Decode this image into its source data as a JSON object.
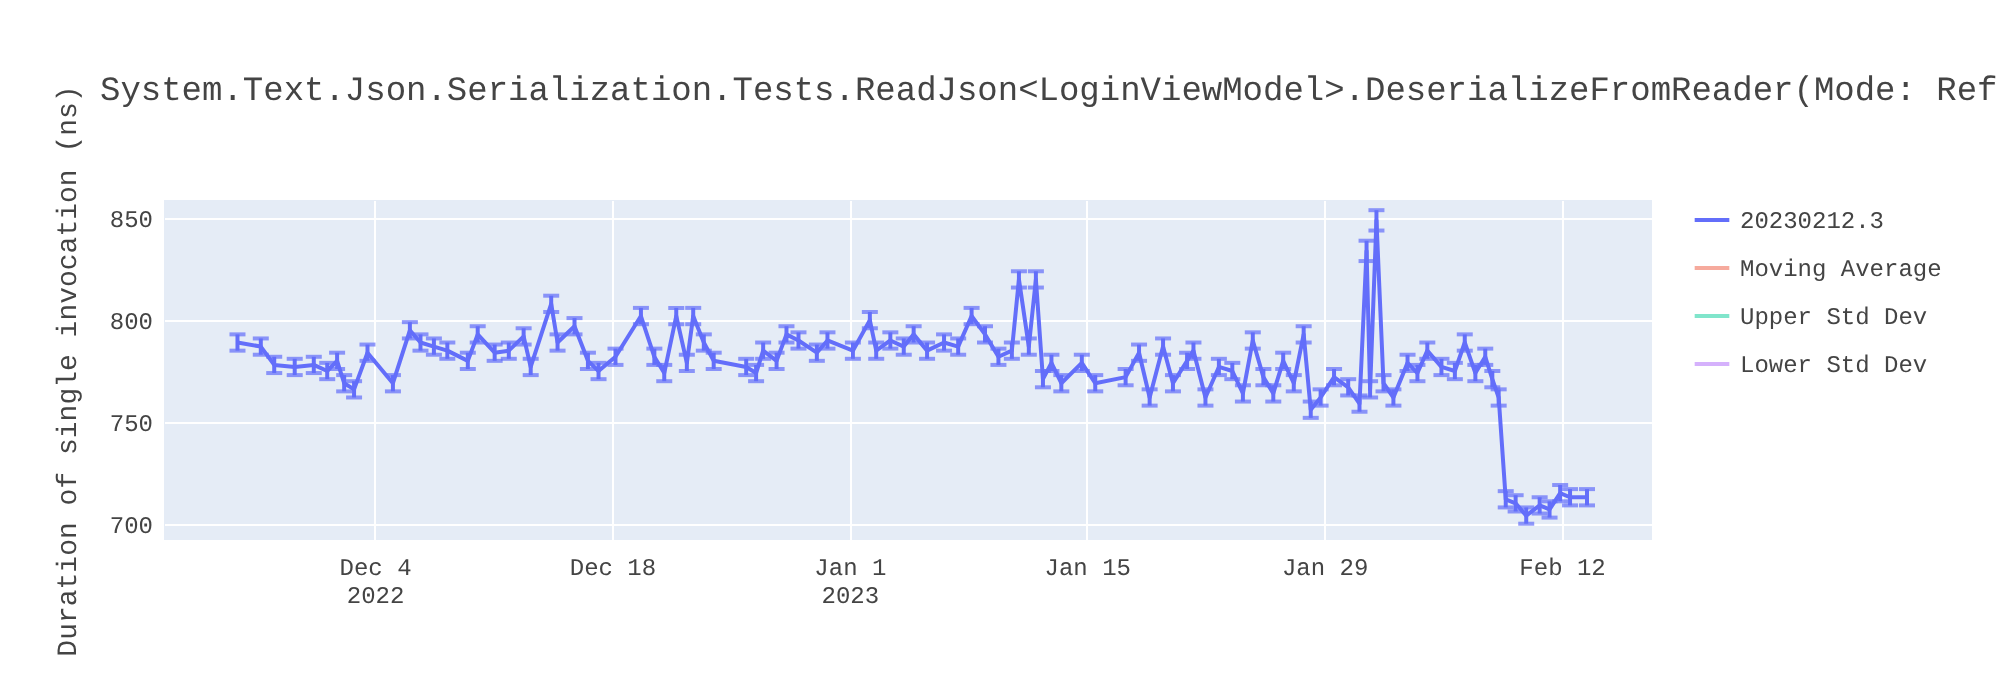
{
  "chart_data": {
    "type": "line",
    "title": "System.Text.Json.Serialization.Tests.ReadJson<LoginViewModel>.DeserializeFromReader(Mode: Ref",
    "ylabel": "Duration of single invocation (ns)",
    "x": [
      "2022-11-25T22:00",
      "2022-11-27T07:00",
      "2022-11-28T02:00",
      "2022-11-29T07:00",
      "2022-11-30T10:00",
      "2022-12-01T05:00",
      "2022-12-01T19:00",
      "2022-12-02T05:00",
      "2022-12-02T19:00",
      "2022-12-03T14:00",
      "2022-12-05T02:00",
      "2022-12-06T02:00",
      "2022-12-06T17:00",
      "2022-12-07T12:00",
      "2022-12-08T07:00",
      "2022-12-09T12:00",
      "2022-12-10T02:00",
      "2022-12-11T02:00",
      "2022-12-11T22:00",
      "2022-12-12T19:00",
      "2022-12-13T05:00",
      "2022-12-14T10:00",
      "2022-12-14T19:00",
      "2022-12-15T19:00",
      "2022-12-16T14:00",
      "2022-12-17T05:00",
      "2022-12-18T05:00",
      "2022-12-19T17:00",
      "2022-12-20T12:00",
      "2022-12-21T02:00",
      "2022-12-21T19:00",
      "2022-12-22T10:00",
      "2022-12-22T19:00",
      "2022-12-23T10:00",
      "2022-12-24T00:00",
      "2022-12-25T22:00",
      "2022-12-26T12:00",
      "2022-12-26T22:00",
      "2022-12-27T17:00",
      "2022-12-28T07:00",
      "2022-12-29T00:00",
      "2022-12-30T02:00",
      "2022-12-30T17:00",
      "2023-01-01T05:00",
      "2023-01-02T05:00",
      "2023-01-02T14:00",
      "2023-01-03T10:00",
      "2023-01-04T05:00",
      "2023-01-04T19:00",
      "2023-01-05T14:00",
      "2023-01-06T14:00",
      "2023-01-07T10:00",
      "2023-01-08T05:00",
      "2023-01-09T00:00",
      "2023-01-09T19:00",
      "2023-01-10T14:00",
      "2023-01-11T00:00",
      "2023-01-11T14:00",
      "2023-01-12T00:00",
      "2023-01-12T10:00",
      "2023-01-12T22:00",
      "2023-01-13T12:00",
      "2023-01-14T17:00",
      "2023-01-15T12:00",
      "2023-01-17T07:00",
      "2023-01-18T02:00",
      "2023-01-18T17:00",
      "2023-01-19T12:00",
      "2023-01-20T02:00",
      "2023-01-20T22:00",
      "2023-01-21T07:00",
      "2023-01-22T00:00",
      "2023-01-22T19:00",
      "2023-01-23T14:00",
      "2023-01-24T05:00",
      "2023-01-24T19:00",
      "2023-01-25T10:00",
      "2023-01-26T00:00",
      "2023-01-26T14:00",
      "2023-01-27T05:00",
      "2023-01-27T19:00",
      "2023-01-28T05:00",
      "2023-01-28T19:00",
      "2023-01-29T14:00",
      "2023-01-30T10:00",
      "2023-01-31T02:00",
      "2023-01-31T12:00",
      "2023-01-31T17:00",
      "2023-02-01T02:00",
      "2023-02-01T12:00",
      "2023-02-02T02:00",
      "2023-02-02T22:00",
      "2023-02-03T12:00",
      "2023-02-04T02:00",
      "2023-02-04T22:00",
      "2023-02-05T17:00",
      "2023-02-06T07:00",
      "2023-02-06T22:00",
      "2023-02-07T12:00",
      "2023-02-07T22:00",
      "2023-02-08T07:00",
      "2023-02-08T17:00",
      "2023-02-09T07:00",
      "2023-02-09T22:00",
      "2023-02-10T17:00",
      "2023-02-11T07:00",
      "2023-02-11T22:00",
      "2023-02-12T12:00",
      "2023-02-13T12:00"
    ],
    "series": [
      {
        "name": "20230212.3",
        "color": "#636efa",
        "values": [
          789,
          787,
          778,
          777,
          778,
          775,
          780,
          769,
          766,
          784,
          769,
          795,
          789,
          787,
          785,
          780,
          793,
          784,
          785,
          792,
          777,
          808,
          789,
          797,
          780,
          775,
          782,
          802,
          782,
          774,
          802,
          779,
          802,
          789,
          780,
          777,
          774,
          785,
          780,
          793,
          790,
          784,
          790,
          785,
          800,
          785,
          790,
          787,
          793,
          785,
          789,
          787,
          802,
          793,
          782,
          785,
          820,
          787,
          820,
          771,
          779,
          769,
          779,
          769,
          772,
          784,
          762,
          787,
          769,
          780,
          785,
          762,
          777,
          775,
          764,
          790,
          772,
          764,
          780,
          769,
          793,
          756,
          762,
          772,
          767,
          759,
          834,
          766,
          849,
          769,
          762,
          779,
          774,
          785,
          777,
          775,
          789,
          774,
          782,
          771,
          762,
          712,
          710,
          704,
          709,
          707,
          715,
          713,
          713
        ],
        "errors": [
          4,
          4,
          4,
          4,
          4,
          4,
          4,
          4,
          4,
          4,
          4,
          4,
          4,
          4,
          4,
          4,
          4,
          4,
          4,
          4,
          4,
          4,
          4,
          4,
          4,
          4,
          4,
          4,
          4,
          4,
          4,
          4,
          4,
          4,
          4,
          4,
          4,
          4,
          4,
          4,
          4,
          4,
          4,
          4,
          4,
          4,
          4,
          4,
          4,
          4,
          4,
          4,
          4,
          4,
          4,
          4,
          4,
          4,
          4,
          4,
          4,
          4,
          4,
          4,
          4,
          4,
          4,
          4,
          4,
          4,
          4,
          4,
          4,
          4,
          4,
          4,
          4,
          4,
          4,
          4,
          4,
          4,
          4,
          4,
          4,
          4,
          5,
          4,
          5,
          4,
          4,
          4,
          4,
          4,
          4,
          4,
          4,
          4,
          4,
          4,
          4,
          4,
          4,
          4,
          4,
          4,
          4,
          4,
          4
        ]
      },
      {
        "name": "Moving Average",
        "color": "#f6aa9d",
        "values": [
          null,
          null,
          null,
          null,
          null,
          null,
          null,
          null,
          null,
          null,
          null,
          null,
          null,
          null,
          null,
          null,
          null,
          null,
          null,
          null,
          null,
          null,
          null,
          null,
          null,
          null,
          null,
          null,
          null,
          null,
          null,
          null,
          null,
          null,
          null,
          null,
          null,
          null,
          null,
          null,
          null,
          null,
          null,
          null,
          null,
          null,
          null,
          null,
          null,
          null,
          null,
          null,
          null,
          null,
          null,
          null,
          null,
          null,
          null,
          null,
          null,
          null,
          null,
          null,
          null,
          null,
          null,
          null,
          null,
          null,
          null,
          null,
          null,
          null,
          null,
          null,
          null,
          null,
          null,
          null,
          null,
          null,
          null,
          null,
          null,
          null,
          null,
          null,
          null,
          null,
          null,
          null,
          null,
          null,
          null,
          null,
          null,
          null,
          null,
          null,
          null,
          null,
          null,
          null,
          null,
          null,
          null,
          null,
          null
        ]
      },
      {
        "name": "Upper Std Dev",
        "color": "#80e5cb",
        "values": [
          null,
          null,
          null,
          null,
          null,
          null,
          null,
          null,
          null,
          null,
          null,
          null,
          null,
          null,
          null,
          null,
          null,
          null,
          null,
          null,
          null,
          null,
          null,
          null,
          null,
          null,
          null,
          null,
          null,
          null,
          null,
          null,
          null,
          null,
          null,
          null,
          null,
          null,
          null,
          null,
          null,
          null,
          null,
          null,
          null,
          null,
          null,
          null,
          null,
          null,
          null,
          null,
          null,
          null,
          null,
          null,
          null,
          null,
          null,
          null,
          null,
          null,
          null,
          null,
          null,
          null,
          null,
          null,
          null,
          null,
          null,
          null,
          null,
          null,
          null,
          null,
          null,
          null,
          null,
          null,
          null,
          null,
          null,
          null,
          null,
          null,
          null,
          null,
          null,
          null,
          null,
          null,
          null,
          null,
          null,
          null,
          null,
          null,
          null,
          null,
          null,
          null,
          null,
          null,
          null,
          null,
          null,
          null,
          null
        ]
      },
      {
        "name": "Lower Std Dev",
        "color": "#d5b1fc",
        "values": [
          null,
          null,
          null,
          null,
          null,
          null,
          null,
          null,
          null,
          null,
          null,
          null,
          null,
          null,
          null,
          null,
          null,
          null,
          null,
          null,
          null,
          null,
          null,
          null,
          null,
          null,
          null,
          null,
          null,
          null,
          null,
          null,
          null,
          null,
          null,
          null,
          null,
          null,
          null,
          null,
          null,
          null,
          null,
          null,
          null,
          null,
          null,
          null,
          null,
          null,
          null,
          null,
          null,
          null,
          null,
          null,
          null,
          null,
          null,
          null,
          null,
          null,
          null,
          null,
          null,
          null,
          null,
          null,
          null,
          null,
          null,
          null,
          null,
          null,
          null,
          null,
          null,
          null,
          null,
          null,
          null,
          null,
          null,
          null,
          null,
          null,
          null,
          null,
          null,
          null,
          null,
          null,
          null,
          null,
          null,
          null,
          null,
          null,
          null,
          null,
          null,
          null,
          null,
          null,
          null,
          null,
          null,
          null,
          null
        ]
      }
    ],
    "xlim": [
      "2022-11-21T14:00",
      "2023-02-17T08:00"
    ],
    "xticks": [
      {
        "value": "2022-12-04",
        "label": "Dec 4\n2022"
      },
      {
        "value": "2022-12-18",
        "label": "Dec 18"
      },
      {
        "value": "2023-01-01",
        "label": "Jan 1\n2023"
      },
      {
        "value": "2023-01-15",
        "label": "Jan 15"
      },
      {
        "value": "2023-01-29",
        "label": "Jan 29"
      },
      {
        "value": "2023-02-12",
        "label": "Feb 12"
      }
    ],
    "ylim": [
      692,
      859
    ],
    "yticks": [
      700,
      750,
      800,
      850
    ],
    "grid": true,
    "legend": "right"
  }
}
